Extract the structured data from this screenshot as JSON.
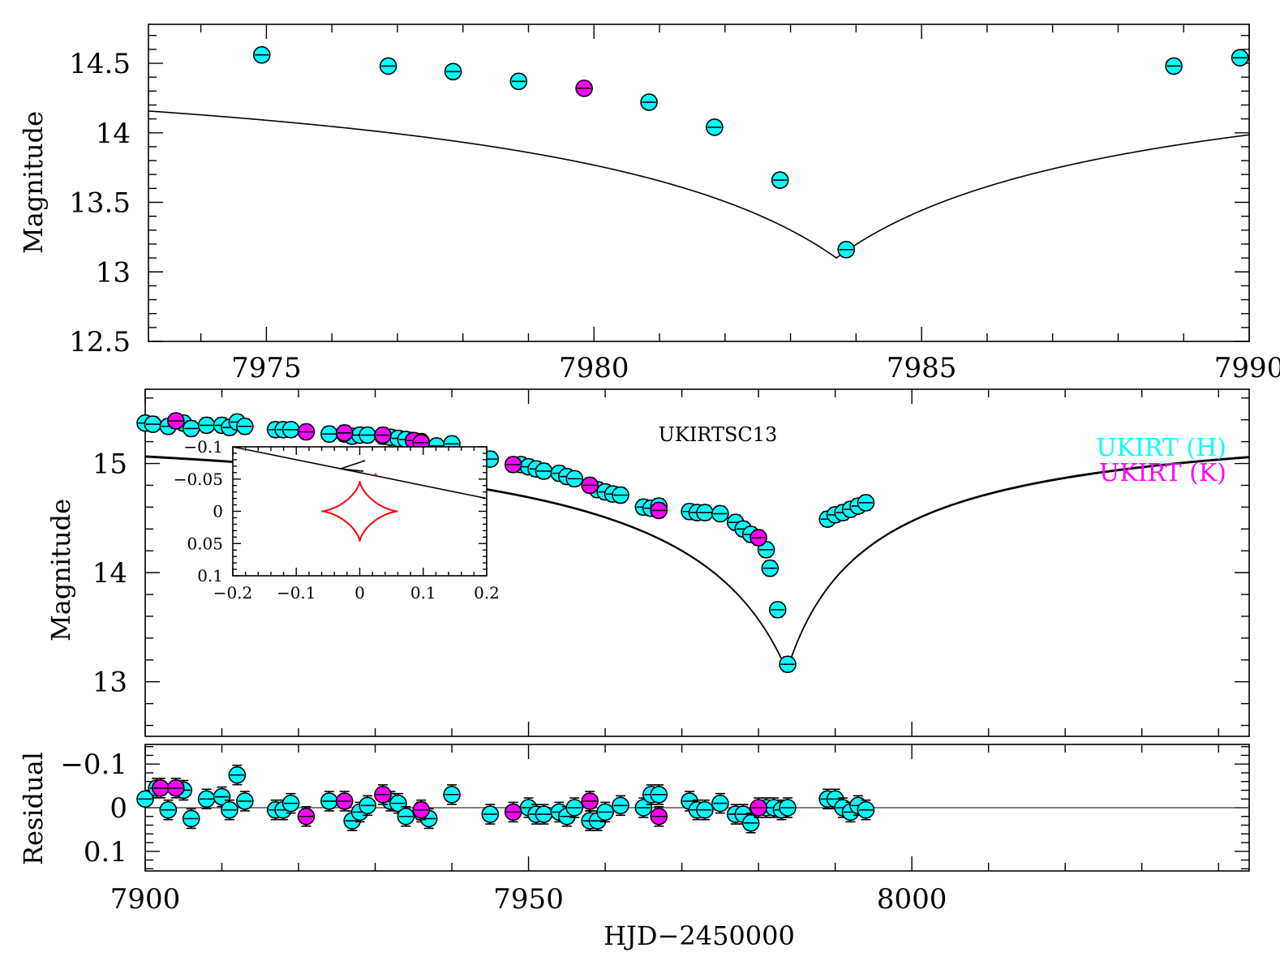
{
  "chart_data": [
    {
      "type": "scatter",
      "panel": "zoom",
      "title": "",
      "xlabel": "",
      "ylabel": "Magnitude",
      "xlim": [
        7973.2,
        7990
      ],
      "ylim": [
        14.78,
        12.5
      ],
      "xticks": [
        7975,
        7980,
        7985,
        7990
      ],
      "xtick_labels": [
        "7975",
        "7980",
        "7985",
        "7990"
      ],
      "yticks": [
        12.5,
        13,
        13.5,
        14,
        14.5
      ],
      "ytick_labels": [
        "12.5",
        "13",
        "13.5",
        "14",
        "14.5"
      ],
      "model": {
        "t0": 7983.7,
        "peak": 13.1,
        "base": 14.7,
        "tau_before": 2.5,
        "tau_after": 2.4
      },
      "series": [
        {
          "name": "UKIRT (H)",
          "color": "#00ffff",
          "x": [
            7974.93,
            7976.86,
            7977.85,
            7978.85,
            7980.84,
            7981.84,
            7982.84,
            7983.85,
            7988.85,
            7989.86
          ],
          "y": [
            14.56,
            14.48,
            14.44,
            14.37,
            14.22,
            14.04,
            13.66,
            13.16,
            14.48,
            14.54
          ]
        },
        {
          "name": "UKIRT (K)",
          "color": "#ff00ff",
          "x": [
            7979.85
          ],
          "y": [
            14.32
          ]
        }
      ]
    },
    {
      "type": "scatter",
      "panel": "full",
      "title": "UKIRTSC13",
      "xlabel": "",
      "ylabel": "Magnitude",
      "xlim": [
        7900,
        8044
      ],
      "ylim": [
        15.68,
        12.5
      ],
      "xticks": [
        7900,
        7950,
        8000
      ],
      "yticks": [
        13,
        14,
        15
      ],
      "ytick_labels": [
        "13",
        "14",
        "15"
      ],
      "legend_position": "top-right",
      "legend": [
        {
          "label": "UKIRT (H)",
          "color": "#00ffff"
        },
        {
          "label": "UKIRT (K)",
          "color": "#ff00ff"
        }
      ],
      "model": {
        "t0": 7983.7,
        "peak": 13.1,
        "base": 15.45,
        "tau_before": 7.5,
        "tau_after": 5.5
      },
      "series": [
        {
          "name": "UKIRT (H)",
          "color": "#00ffff",
          "x": [
            7900,
            7901,
            7903,
            7905,
            7906,
            7908,
            7910,
            7911,
            7912,
            7913,
            7917,
            7918,
            7919,
            7924,
            7926,
            7927,
            7928,
            7929,
            7931,
            7932,
            7933,
            7934,
            7935,
            7936,
            7938,
            7940,
            7945,
            7949,
            7950,
            7951,
            7952,
            7954,
            7955,
            7956,
            7959,
            7960,
            7961,
            7962,
            7965,
            7966,
            7967,
            7971,
            7972,
            7973,
            7975,
            7977,
            7978,
            7979,
            7981,
            7981.5,
            7982.5,
            7983.8,
            7989,
            7990,
            7991,
            7992,
            7993,
            7994
          ],
          "y": [
            15.37,
            15.36,
            15.34,
            15.37,
            15.32,
            15.35,
            15.35,
            15.33,
            15.38,
            15.34,
            15.31,
            15.31,
            15.31,
            15.27,
            15.27,
            15.25,
            15.26,
            15.26,
            15.25,
            15.24,
            15.23,
            15.22,
            15.21,
            15.2,
            15.16,
            15.18,
            15.04,
            14.99,
            14.97,
            14.95,
            14.93,
            14.91,
            14.88,
            14.86,
            14.76,
            14.74,
            14.72,
            14.71,
            14.6,
            14.59,
            14.61,
            14.56,
            14.55,
            14.55,
            14.54,
            14.46,
            14.4,
            14.35,
            14.21,
            14.04,
            13.66,
            13.16,
            14.49,
            14.53,
            14.55,
            14.58,
            14.61,
            14.64
          ]
        },
        {
          "name": "UKIRT (K)",
          "color": "#ff00ff",
          "x": [
            7904,
            7921,
            7926,
            7931,
            7935,
            7936,
            7948,
            7958,
            7967,
            7980
          ],
          "y": [
            15.39,
            15.29,
            15.28,
            15.26,
            15.21,
            15.19,
            14.99,
            14.8,
            14.57,
            14.32
          ]
        }
      ]
    },
    {
      "type": "scatter",
      "panel": "residual",
      "title": "",
      "xlabel": "HJD−2450000",
      "ylabel": "Residual",
      "xlim": [
        7900,
        8044
      ],
      "ylim": [
        -0.145,
        0.145
      ],
      "xticks": [
        7900,
        7950,
        8000
      ],
      "xtick_labels": [
        "7900",
        "7950",
        "8000"
      ],
      "yticks": [
        0.1,
        0,
        -0.1
      ],
      "ytick_labels": [
        "0.1",
        "0",
        "−0.1"
      ],
      "series": [
        {
          "name": "UKIRT (H)",
          "color": "#00ffff",
          "x": [
            7900,
            7901.5,
            7903,
            7905,
            7906,
            7908,
            7910,
            7911,
            7912,
            7913,
            7917,
            7918,
            7919,
            7924,
            7927,
            7928,
            7929,
            7932,
            7933,
            7934,
            7936,
            7937,
            7940,
            7945,
            7950,
            7951,
            7952,
            7954,
            7955,
            7956,
            7958,
            7959,
            7960,
            7962,
            7965,
            7966,
            7967,
            7971,
            7972,
            7973,
            7975,
            7977,
            7978,
            7979,
            7981,
            7982,
            7983,
            7983.8,
            7989,
            7990,
            7991,
            7992,
            7993,
            7994
          ],
          "y": [
            -0.02,
            -0.045,
            0.005,
            -0.04,
            0.025,
            -0.02,
            -0.025,
            0.005,
            -0.075,
            -0.015,
            0.005,
            0.005,
            -0.01,
            -0.015,
            0.03,
            0.01,
            -0.005,
            -0.015,
            -0.01,
            0.02,
            0.01,
            0.025,
            -0.03,
            0.015,
            0.0,
            0.015,
            0.015,
            0.01,
            0.02,
            0.0,
            0.03,
            0.03,
            0.01,
            -0.005,
            0.0,
            -0.03,
            -0.03,
            -0.015,
            0.005,
            0.005,
            -0.01,
            0.015,
            0.015,
            0.035,
            0.0,
            0.0,
            0.005,
            0.0,
            -0.02,
            -0.02,
            0.0,
            0.01,
            -0.005,
            0.005
          ]
        },
        {
          "name": "UKIRT (K)",
          "color": "#ff00ff",
          "x": [
            7902,
            7904,
            7921,
            7926,
            7931,
            7936,
            7948,
            7958,
            7967,
            7980
          ],
          "y": [
            -0.045,
            -0.045,
            0.02,
            -0.015,
            -0.03,
            0.005,
            0.01,
            -0.015,
            0.02,
            0.0
          ]
        }
      ]
    },
    {
      "type": "line",
      "panel": "inset",
      "title": "",
      "xlabel": "",
      "ylabel": "",
      "xlim": [
        -0.2,
        0.2
      ],
      "ylim": [
        -0.1,
        0.1
      ],
      "xticks": [
        -0.2,
        -0.1,
        0,
        0.1,
        0.2
      ],
      "xtick_labels": [
        "−0.2",
        "−0.1",
        "0",
        "0.1",
        "0.2"
      ],
      "yticks": [
        0.1,
        0.05,
        0,
        -0.05,
        -0.1
      ],
      "ytick_labels": [
        "0.1",
        "0.05",
        "0",
        "−0.05",
        "−0.1"
      ],
      "caustic": {
        "color": "#ff0000",
        "center": [
          0,
          0
        ],
        "half_width": 0.06,
        "half_height": 0.047
      },
      "trajectory": {
        "x": [
          -0.2,
          0.2
        ],
        "y": [
          -0.1,
          -0.02
        ],
        "arrow_at": [
          -0.03,
          -0.066
        ]
      }
    }
  ]
}
